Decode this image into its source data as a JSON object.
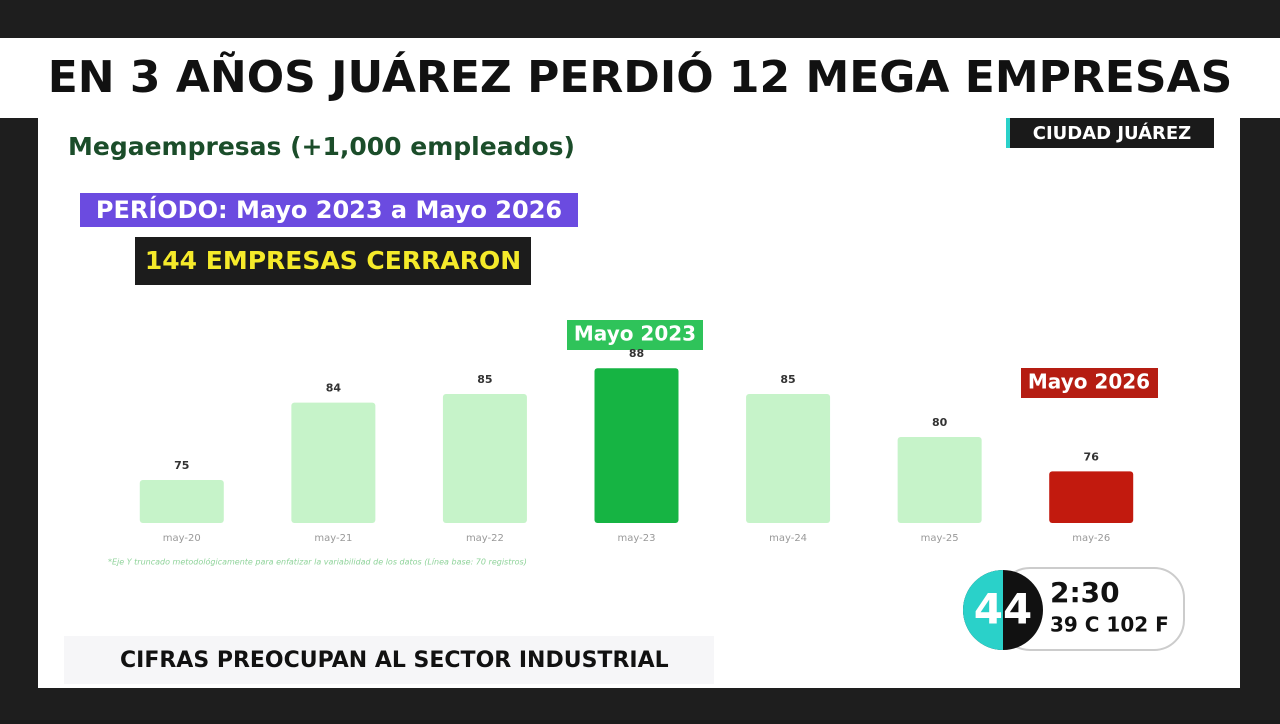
{
  "header": {
    "title": "EN 3 AÑOS JUÁREZ PERDIÓ 12 MEGA EMPRESAS"
  },
  "location": "CIUDAD JUÁREZ",
  "period": "PERÍODO: Mayo 2023 a Mayo 2026",
  "closed": "144 EMPRESAS CERRARON",
  "ticker": "CIFRAS PREOCUPAN AL SECTOR INDUSTRIAL",
  "clock": {
    "logo": "44",
    "time": "2:30",
    "weather": "39 C 102 F"
  },
  "chart_data": {
    "type": "bar",
    "title": "Megaempresas (+1,000 empleados)",
    "categories": [
      "may-20",
      "may-21",
      "may-22",
      "may-23",
      "may-24",
      "may-25",
      "may-26"
    ],
    "values": [
      75,
      84,
      85,
      88,
      85,
      80,
      76
    ],
    "colors": [
      "#c6f3c9",
      "#c6f3c9",
      "#c6f3c9",
      "#16b443",
      "#c6f3c9",
      "#c6f3c9",
      "#c21a0e"
    ],
    "ylim": [
      70,
      90
    ],
    "annotations": [
      "Mayo 2023",
      "Mayo 2026"
    ],
    "note": "*Eje Y truncado metodológicamente para enfatizar la variabilidad de los datos (Línea base: 70 registros)"
  }
}
